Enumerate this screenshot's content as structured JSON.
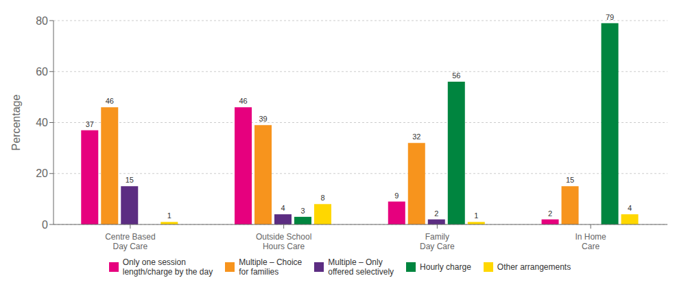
{
  "chart_data": {
    "type": "bar",
    "categories": [
      "Centre Based\nDay Care",
      "Outside School\nHours Care",
      "Family\nDay Care",
      "In Home\nCare"
    ],
    "series": [
      {
        "name": "Only one session\nlength/charge by the day",
        "color": "#E6007E",
        "values": [
          37,
          46,
          9,
          2
        ]
      },
      {
        "name": "Multiple – Choice\nfor families",
        "color": "#F7941D",
        "values": [
          46,
          39,
          32,
          15
        ]
      },
      {
        "name": "Multiple – Only\noffered selectively",
        "color": "#5C2D82",
        "values": [
          15,
          4,
          2,
          0
        ]
      },
      {
        "name": "Hourly charge",
        "color": "#00853F",
        "values": [
          0,
          3,
          56,
          79
        ]
      },
      {
        "name": "Other arrangements",
        "color": "#FFD700",
        "values": [
          1,
          8,
          1,
          4
        ]
      }
    ],
    "ylabel": "Percentage",
    "ylim": [
      0,
      80
    ],
    "yticks": [
      0,
      20,
      40,
      60,
      80
    ],
    "grid": true,
    "data_labels": true,
    "legend": "bottom"
  }
}
